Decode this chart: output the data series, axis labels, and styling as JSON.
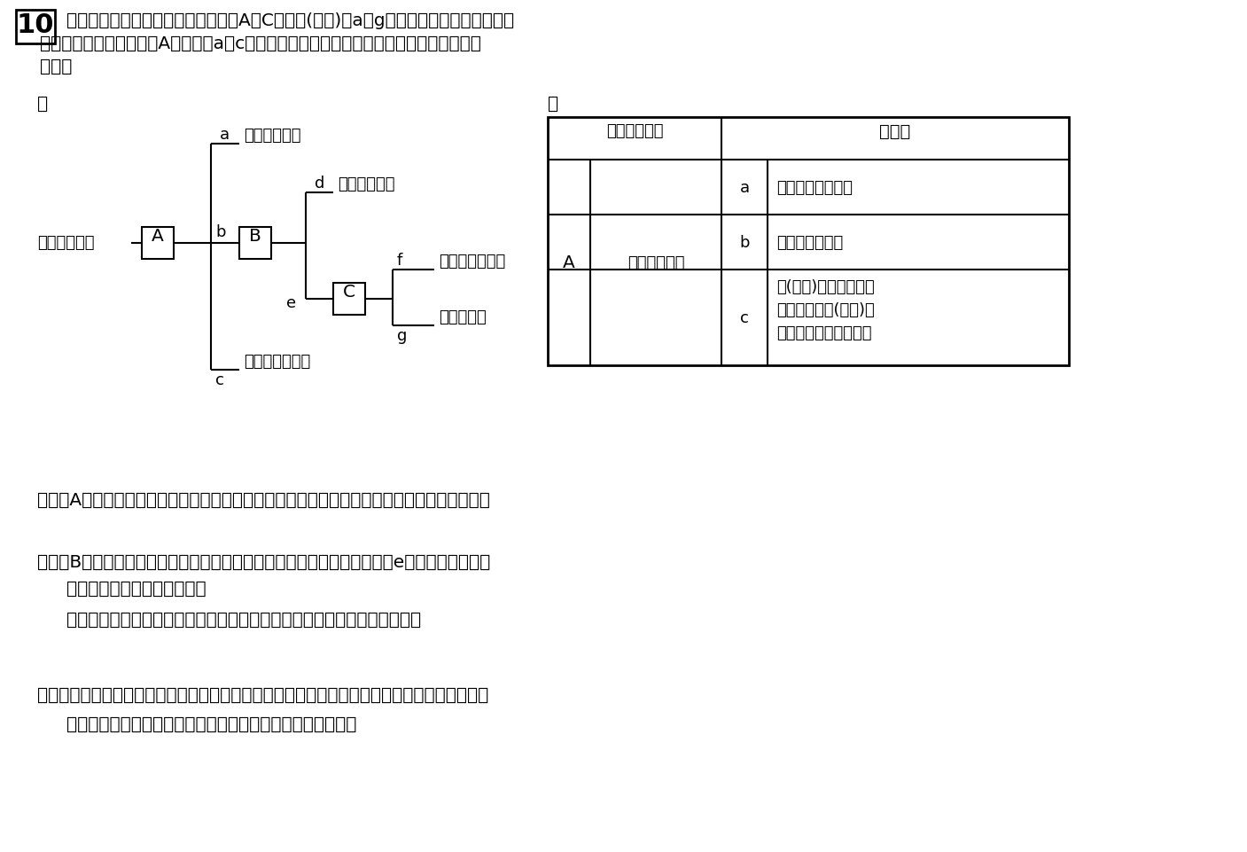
{
  "title_number": "10",
  "header_line1": "次の図は数種類のセキツイ動物を，A〜Cの観点(特徴)とa〜gの基準で５種類に分類した",
  "header_line2": "ものである。また，表はAの観点とa〜cの基準をまとめたものである。下の問いに答えな",
  "header_line3": "さい。",
  "zu_label": "図",
  "hyo_label": "表",
  "root_label": "セキツイ動物",
  "A_label": "A",
  "B_label": "B",
  "C_label": "C",
  "branch_labels": [
    "a",
    "b",
    "c",
    "d",
    "e",
    "f",
    "g"
  ],
  "leaf_a": "フナ，メダカ",
  "leaf_d": "クマ，ウサギ",
  "leaf_f": "ワシ，ペンギン",
  "leaf_g": "カメ，ヘビ",
  "leaf_c": "カエル，イモリ",
  "table_h1": "観点（特徴）",
  "table_h2": "基　準",
  "table_A": "A",
  "table_obs": "呼吸のしかた",
  "table_a": "a",
  "table_b": "b",
  "table_c": "c",
  "table_val_a": "えらで呼吸する。",
  "table_val_b": "肺で呼吸する。",
  "table_val_c1": "子(幼生)はえらや皮膚",
  "table_val_c2": "で呼吸し，親(成体)は",
  "table_val_c3": "肺や皮膚で呼吸する。",
  "q1": "問１　Aの観点で分けたとき，ｃの基準に分類される動物を何類といいますか，書きなさい。",
  "q2_l1": "問２　Bの観点として最も適当なものを，ア〜ウから選びなさい。また，eの基準はどのよう",
  "q2_l2": "になりますか，書きなさい。",
  "q2_opts": "ア　住んでいる場所　　　　イ　体表のようす　　　　ウ　子のうまれ方",
  "q3_l1": "問３　カメやヘビの卵は，フナやメダカの卵と比べて，どのような違いがありますか。また，",
  "q3_l2": "それはどのような利点がありますか。それぞれ書きなさい。",
  "bg_color": "#ffffff",
  "black": "#000000",
  "fs": 14.5,
  "fs_s": 13.0
}
